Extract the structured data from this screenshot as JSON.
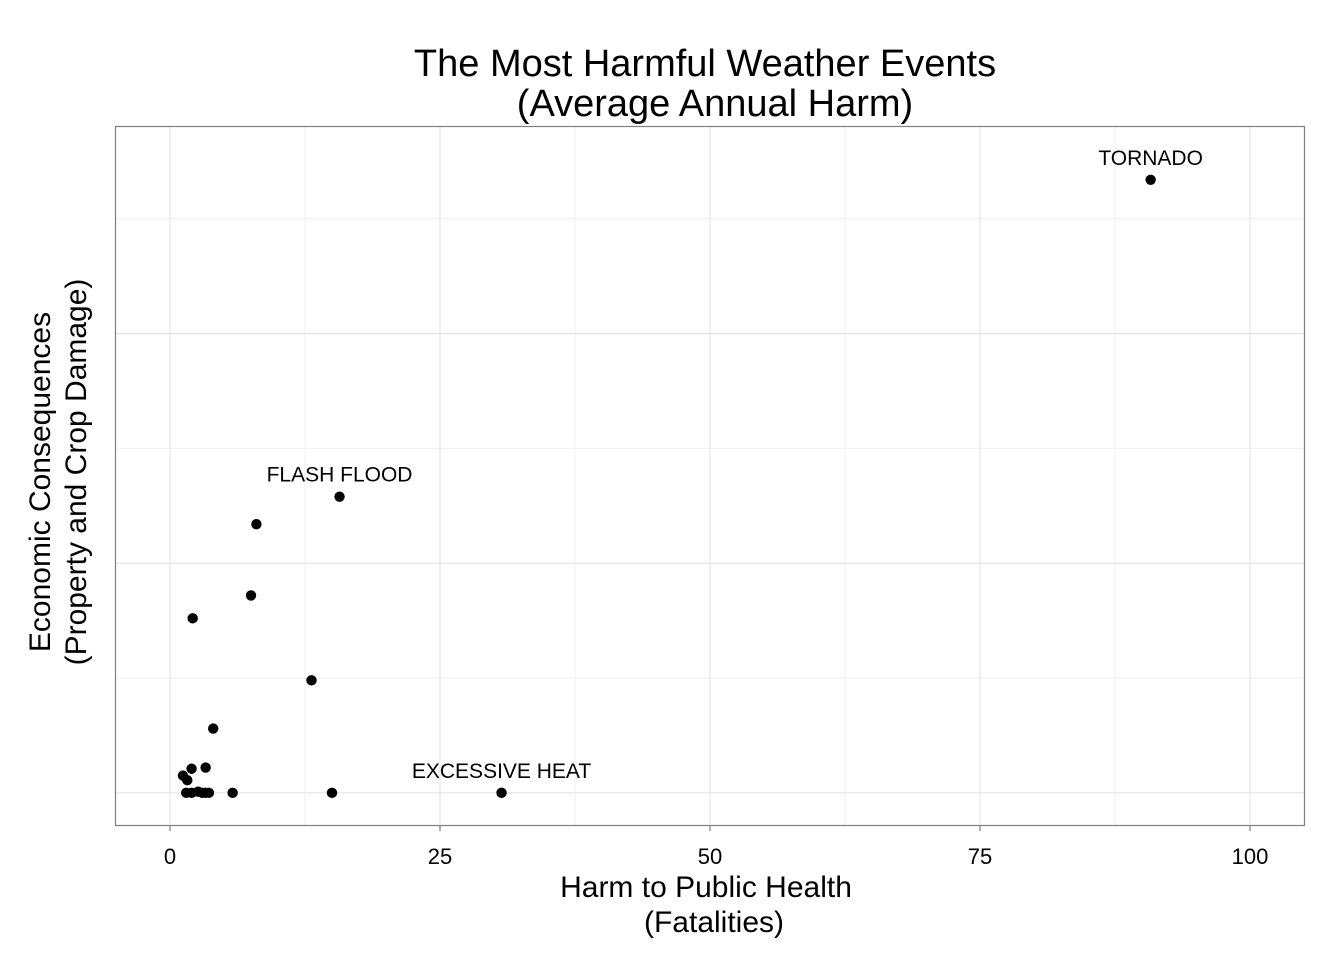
{
  "chart_data": {
    "type": "scatter",
    "title_line1": "The Most Harmful Weather Events",
    "title_line2": "(Average Annual Harm)",
    "xlabel_line1": "Harm to Public Health",
    "xlabel_line2": "(Fatalities)",
    "ylabel_line1": "Economic Consequences",
    "ylabel_line2": "(Property and Crop Damage)",
    "xlim": [
      -5,
      105
    ],
    "ylim": [
      -0.14,
      2.9
    ],
    "x_ticks": [
      0,
      25,
      50,
      75,
      100
    ],
    "x_tick_labels": [
      "0",
      "25",
      "50",
      "75",
      "100"
    ],
    "y_major_gridlines": [
      0,
      1,
      2
    ],
    "y_tick_labels_shown": false,
    "grid": true,
    "points": [
      {
        "x": 90.8,
        "y": 2.67,
        "label": "TORNADO"
      },
      {
        "x": 15.7,
        "y": 1.29,
        "label": "FLASH FLOOD"
      },
      {
        "x": 30.7,
        "y": 0.0,
        "label": "EXCESSIVE HEAT"
      },
      {
        "x": 8.0,
        "y": 1.17,
        "label": ""
      },
      {
        "x": 7.5,
        "y": 0.86,
        "label": ""
      },
      {
        "x": 2.1,
        "y": 0.76,
        "label": ""
      },
      {
        "x": 13.1,
        "y": 0.49,
        "label": ""
      },
      {
        "x": 4.0,
        "y": 0.28,
        "label": ""
      },
      {
        "x": 3.3,
        "y": 0.11,
        "label": ""
      },
      {
        "x": 2.0,
        "y": 0.105,
        "label": ""
      },
      {
        "x": 1.2,
        "y": 0.075,
        "label": ""
      },
      {
        "x": 1.6,
        "y": 0.055,
        "label": ""
      },
      {
        "x": 1.5,
        "y": 0.0,
        "label": ""
      },
      {
        "x": 2.0,
        "y": 0.0,
        "label": ""
      },
      {
        "x": 2.6,
        "y": 0.005,
        "label": ""
      },
      {
        "x": 3.0,
        "y": 0.0,
        "label": ""
      },
      {
        "x": 3.3,
        "y": 0.0,
        "label": ""
      },
      {
        "x": 3.6,
        "y": 0.0,
        "label": ""
      },
      {
        "x": 5.8,
        "y": 0.0,
        "label": ""
      },
      {
        "x": 15.0,
        "y": 0.0,
        "label": ""
      }
    ]
  }
}
